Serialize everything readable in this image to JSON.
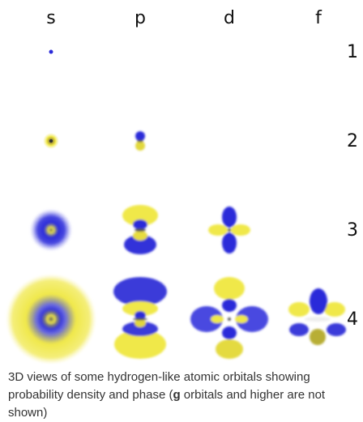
{
  "columns": [
    "s",
    "p",
    "d",
    "f"
  ],
  "rows": [
    "1",
    "2",
    "3",
    "4"
  ],
  "colors": {
    "positive": "#f0e84a",
    "negative": "#2b2bd9",
    "node": "#555555"
  },
  "orbitals": [
    {
      "id": "1s",
      "shape": "sphere",
      "n": 1,
      "rings": 0
    },
    {
      "id": "2s",
      "shape": "sphere",
      "n": 2,
      "rings": 1
    },
    {
      "id": "3s",
      "shape": "sphere",
      "n": 3,
      "rings": 2
    },
    {
      "id": "4s",
      "shape": "sphere",
      "n": 4,
      "rings": 3
    },
    {
      "id": "2p",
      "shape": "p",
      "n": 2
    },
    {
      "id": "3p",
      "shape": "p",
      "n": 3
    },
    {
      "id": "4p",
      "shape": "p",
      "n": 4
    },
    {
      "id": "3d",
      "shape": "d",
      "n": 3
    },
    {
      "id": "4d",
      "shape": "d",
      "n": 4
    },
    {
      "id": "4f",
      "shape": "f",
      "n": 4
    }
  ],
  "caption": {
    "before": "3D views of some hydrogen-like atomic orbitals showing probability density and phase (",
    "bold": "g",
    "after": " orbitals and higher are not shown)"
  }
}
